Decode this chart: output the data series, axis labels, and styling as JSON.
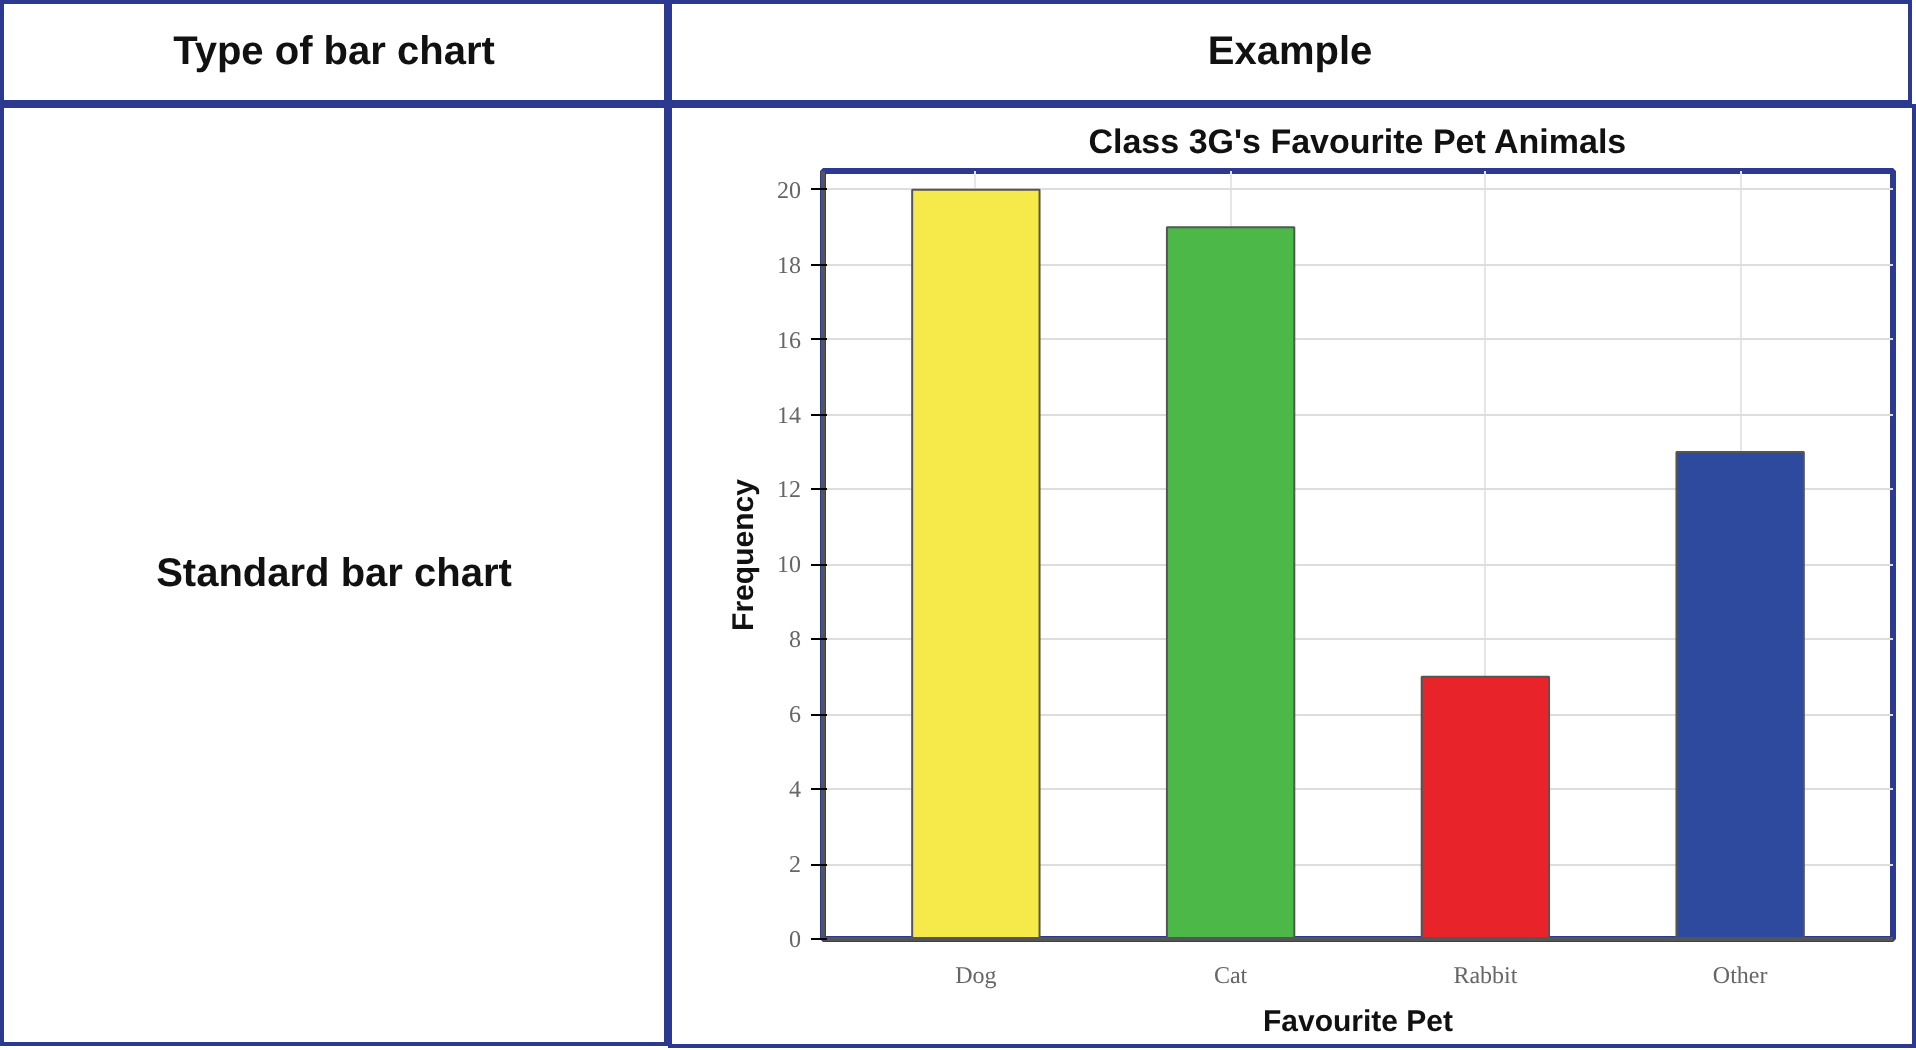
{
  "chart_data": {
    "type": "bar",
    "title": "Class 3G's Favourite Pet Animals",
    "xlabel": "Favourite Pet",
    "ylabel": "Frequency",
    "categories": [
      "Dog",
      "Cat",
      "Rabbit",
      "Other"
    ],
    "values": [
      20,
      19,
      7,
      13
    ],
    "colors": [
      "#f5ea4a",
      "#4cb848",
      "#e8232a",
      "#2e4a9e"
    ],
    "ylim": [
      0,
      20.5
    ],
    "yticks": [
      0,
      2,
      4,
      6,
      8,
      10,
      12,
      14,
      16,
      18,
      20
    ],
    "grid": true,
    "annotations": [
      "Type of bar chart",
      "Example",
      "Standard bar chart"
    ]
  }
}
